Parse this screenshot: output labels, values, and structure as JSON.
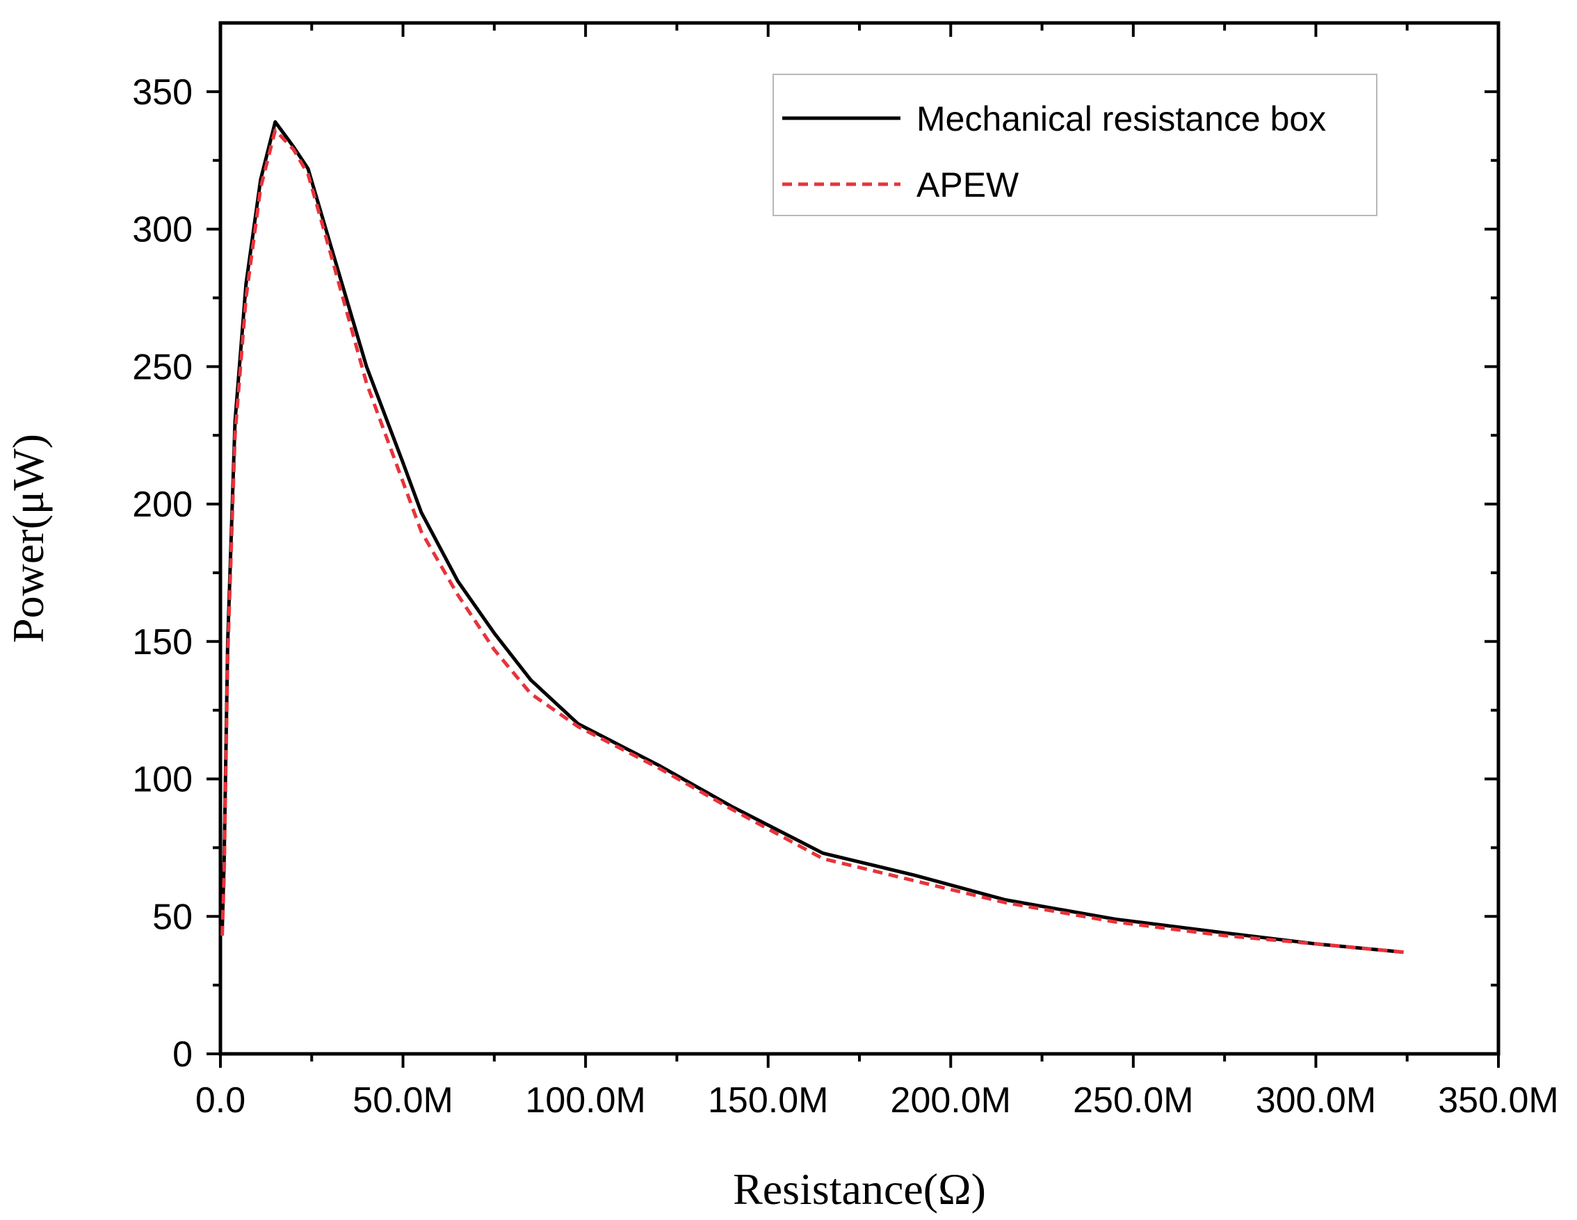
{
  "chart_data": {
    "type": "line",
    "title": "",
    "xlabel": "Resistance(Ω)",
    "ylabel": "Power(μW)",
    "xlim": [
      0,
      350
    ],
    "ylim": [
      0,
      375
    ],
    "x_unit_note": "x values in MΩ",
    "x_ticks": [
      0,
      50,
      100,
      150,
      200,
      250,
      300,
      350
    ],
    "x_tick_labels": [
      "0.0",
      "50.0M",
      "100.0M",
      "150.0M",
      "200.0M",
      "250.0M",
      "300.0M",
      "350.0M"
    ],
    "y_ticks": [
      0,
      50,
      100,
      150,
      200,
      250,
      300,
      350
    ],
    "y_tick_labels": [
      "0",
      "50",
      "100",
      "150",
      "200",
      "250",
      "300",
      "350"
    ],
    "grid": false,
    "legend_position": "top-right",
    "series": [
      {
        "name": "Mechanical resistance box",
        "color": "#000000",
        "style": "solid",
        "x": [
          0.5,
          1.0,
          2.0,
          4.0,
          7.0,
          11.0,
          15.0,
          20.0,
          24.0,
          30.0,
          40.0,
          50.0,
          55.0,
          65.0,
          75.0,
          85.0,
          98.0,
          120.0,
          140.0,
          165.0,
          190.0,
          215.0,
          245.0,
          275.0,
          300.0,
          324.0
        ],
        "y": [
          45,
          70,
          150,
          230,
          280,
          318,
          339,
          330,
          322,
          295,
          250,
          215,
          197,
          172,
          153,
          136,
          120,
          105,
          90,
          73,
          65,
          56,
          49,
          44,
          40,
          37
        ]
      },
      {
        "name": "APEW",
        "color": "#e8333b",
        "style": "dashed",
        "x": [
          0.5,
          1.0,
          2.0,
          4.0,
          7.0,
          11.0,
          15.0,
          20.0,
          24.0,
          30.0,
          40.0,
          50.0,
          55.0,
          65.0,
          75.0,
          85.0,
          98.0,
          120.0,
          140.0,
          165.0,
          190.0,
          215.0,
          245.0,
          275.0,
          300.0,
          324.0
        ],
        "y": [
          43,
          65,
          145,
          225,
          275,
          315,
          336,
          329,
          320,
          292,
          244,
          208,
          190,
          167,
          147,
          131,
          119,
          104,
          89,
          71,
          63,
          55,
          48,
          43,
          40,
          37
        ]
      }
    ]
  }
}
